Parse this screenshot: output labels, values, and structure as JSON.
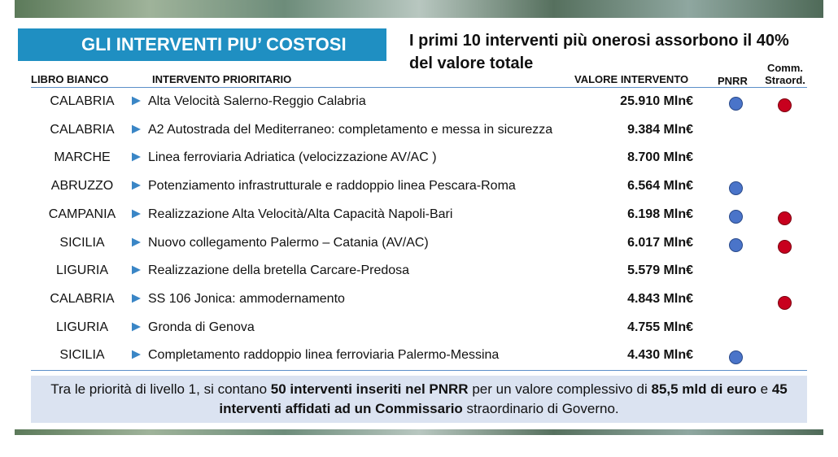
{
  "header": {
    "title": "GLI INTERVENTI PIU’ COSTOSI",
    "subtitle": "I primi 10 interventi più onerosi assorbono il 40% del valore totale"
  },
  "table": {
    "columns": [
      "LIBRO BIANCO",
      "INTERVENTO PRIORITARIO",
      "VALORE INTERVENTO",
      "PNRR",
      "Comm. Straord."
    ],
    "rows": [
      {
        "region": "CALABRIA",
        "intervention": "Alta Velocità Salerno-Reggio Calabria",
        "value": "25.910 Mln€",
        "pnrr": true,
        "comm": true
      },
      {
        "region": "CALABRIA",
        "intervention": "A2 Autostrada del Mediterraneo: completamento e messa in sicurezza",
        "value": "9.384 Mln€",
        "pnrr": false,
        "comm": false
      },
      {
        "region": "MARCHE",
        "intervention": "Linea ferroviaria Adriatica (velocizzazione AV/AC )",
        "value": "8.700 Mln€",
        "pnrr": false,
        "comm": false
      },
      {
        "region": "ABRUZZO",
        "intervention": "Potenziamento infrastrutturale e raddoppio linea Pescara-Roma",
        "value": "6.564 Mln€",
        "pnrr": true,
        "comm": false
      },
      {
        "region": "CAMPANIA",
        "intervention": "Realizzazione Alta Velocità/Alta Capacità Napoli-Bari",
        "value": "6.198 Mln€",
        "pnrr": true,
        "comm": true
      },
      {
        "region": "SICILIA",
        "intervention": "Nuovo collegamento Palermo – Catania (AV/AC)",
        "value": "6.017 Mln€",
        "pnrr": true,
        "comm": true
      },
      {
        "region": "LIGURIA",
        "intervention": "Realizzazione della bretella Carcare-Predosa",
        "value": "5.579 Mln€",
        "pnrr": false,
        "comm": false
      },
      {
        "region": "CALABRIA",
        "intervention": "SS 106 Jonica: ammodernamento",
        "value": "4.843 Mln€",
        "pnrr": false,
        "comm": true
      },
      {
        "region": "LIGURIA",
        "intervention": "Gronda di Genova",
        "value": "4.755 Mln€",
        "pnrr": false,
        "comm": false
      },
      {
        "region": "SICILIA",
        "intervention": "Completamento raddoppio linea ferroviaria Palermo-Messina",
        "value": "4.430 Mln€",
        "pnrr": true,
        "comm": false
      }
    ]
  },
  "note": [
    {
      "text": "Tra le priorità di livello 1, si contano ",
      "bold": false
    },
    {
      "text": "50 interventi inseriti nel PNRR",
      "bold": true
    },
    {
      "text": " per un valore complessivo di ",
      "bold": false
    },
    {
      "text": "85,5 mld di euro",
      "bold": true
    },
    {
      "text": " e ",
      "bold": false
    },
    {
      "text": "45 interventi affidati ad un Commissario",
      "bold": true
    },
    {
      "text": " straordinario di Governo.",
      "bold": false
    }
  ]
}
